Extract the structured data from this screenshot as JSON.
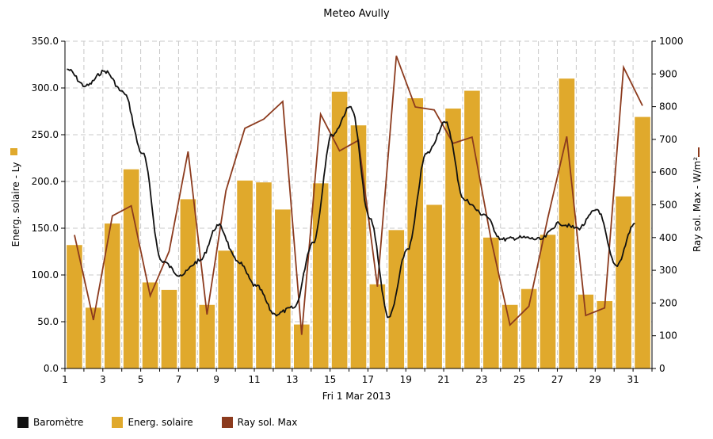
{
  "chart_data": {
    "type": "bar",
    "title": "Meteo  Avully",
    "xlabel": "Fri 1 Mar 2013",
    "ylabel_left": "Energ. solaire - Ly",
    "ylabel_right": "Ray sol. Max - W/m²",
    "ylim_left": [
      0,
      350
    ],
    "ylim_right": [
      0,
      1000
    ],
    "yticks_left": [
      "0.0",
      "50.0",
      "100.0",
      "150.0",
      "200.0",
      "250.0",
      "300.0",
      "350.0"
    ],
    "yticks_right": [
      "0",
      "100",
      "200",
      "300",
      "400",
      "500",
      "600",
      "700",
      "800",
      "900",
      "1000"
    ],
    "xticks": [
      "1",
      "3",
      "5",
      "7",
      "9",
      "11",
      "13",
      "15",
      "17",
      "19",
      "21",
      "23",
      "25",
      "27",
      "29",
      "31"
    ],
    "days": [
      1,
      2,
      3,
      4,
      5,
      6,
      7,
      8,
      9,
      10,
      11,
      12,
      13,
      14,
      15,
      16,
      17,
      18,
      19,
      20,
      21,
      22,
      23,
      24,
      25,
      26,
      27,
      28,
      29,
      30,
      31
    ],
    "grid": true,
    "legend_position": "bottom",
    "series": [
      {
        "name": "Energ. solaire",
        "kind": "bar",
        "axis": "left",
        "color": "#e0a92c",
        "values": [
          132,
          65,
          155,
          213,
          92,
          84,
          181,
          68,
          126,
          201,
          199,
          170,
          47,
          198,
          296,
          260,
          90,
          148,
          289,
          175,
          278,
          297,
          140,
          68,
          85,
          143,
          310,
          79,
          72,
          184,
          269
        ]
      },
      {
        "name": "Ray sol. Max",
        "kind": "line",
        "axis": "right",
        "color": "#8c3b1e",
        "values": [
          408,
          148,
          466,
          497,
          222,
          358,
          663,
          165,
          543,
          734,
          762,
          816,
          103,
          777,
          665,
          697,
          250,
          955,
          799,
          790,
          688,
          707,
          395,
          133,
          190,
          460,
          709,
          162,
          185,
          920,
          803
        ]
      },
      {
        "name": "Baromètre",
        "kind": "line",
        "axis": "left",
        "color": "#111111",
        "values": [
          320,
          302,
          318,
          295,
          230,
          115,
          100,
          115,
          153,
          115,
          88,
          58,
          65,
          135,
          250,
          280,
          160,
          55,
          128,
          230,
          263,
          180,
          165,
          138,
          140,
          138,
          155,
          150,
          170,
          110,
          155
        ]
      }
    ]
  },
  "legend": [
    {
      "label": "Baromètre",
      "color": "#111111"
    },
    {
      "label": "Energ. solaire",
      "color": "#e0a92c"
    },
    {
      "label": "Ray sol. Max",
      "color": "#8c3b1e"
    }
  ]
}
